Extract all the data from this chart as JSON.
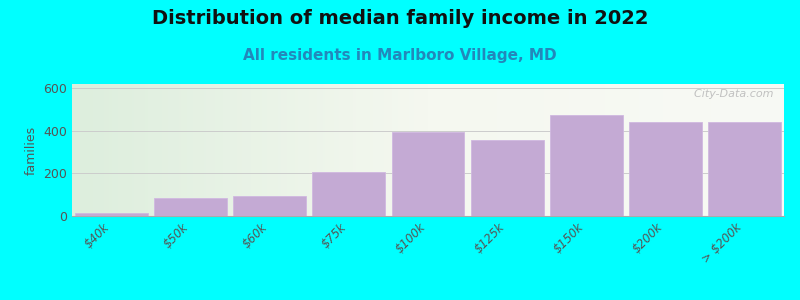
{
  "title": "Distribution of median family income in 2022",
  "subtitle": "All residents in Marlboro Village, MD",
  "ylabel": "families",
  "background_color": "#00FFFF",
  "bar_color": "#c4aad4",
  "bar_edge_color": "#d0b8e0",
  "categories": [
    "$40k",
    "$50k",
    "$60k",
    "$75k",
    "$100k",
    "$125k",
    "$150k",
    "$200k",
    "> $200k"
  ],
  "values": [
    15,
    83,
    96,
    205,
    395,
    358,
    475,
    440,
    440
  ],
  "ylim": [
    0,
    620
  ],
  "yticks": [
    0,
    200,
    400,
    600
  ],
  "title_fontsize": 14,
  "subtitle_fontsize": 11,
  "watermark": "  City-Data.com"
}
